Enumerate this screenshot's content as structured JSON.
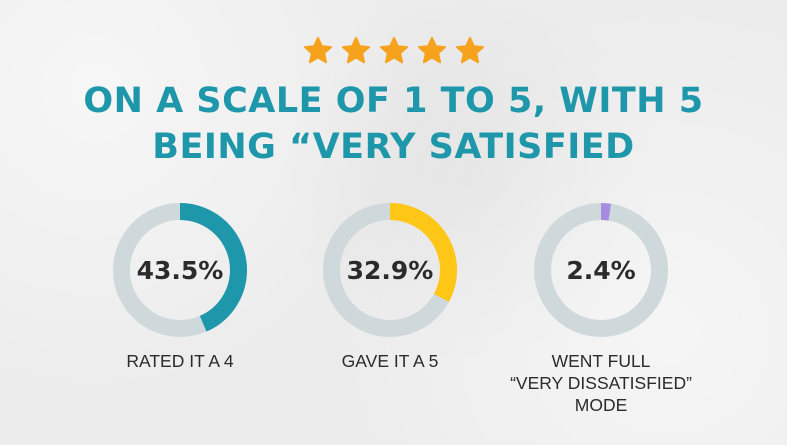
{
  "header": {
    "stars": 5,
    "star_color": "#f6a21d",
    "star_icon": "star-icon",
    "title_line1": "ON A SCALE OF 1 TO 5, WITH 5",
    "title_line2": "BEING “VERY SATISFIED"
  },
  "colors": {
    "title": "#1d97a9",
    "track": "#cfd9dc",
    "text": "#2b2b2b"
  },
  "chart_data": {
    "type": "pie",
    "variant": "donut",
    "items": [
      {
        "value": 43.5,
        "label_text": "43.5%",
        "caption": "RATED IT A 4",
        "color": "#1d97a9"
      },
      {
        "value": 32.9,
        "label_text": "32.9%",
        "caption": "GAVE IT A 5",
        "color": "#fec718"
      },
      {
        "value": 2.4,
        "label_text": "2.4%",
        "caption": "WENT FULL\n“VERY DISSATISFIED”\nMODE",
        "color": "#a58ce0"
      }
    ]
  }
}
